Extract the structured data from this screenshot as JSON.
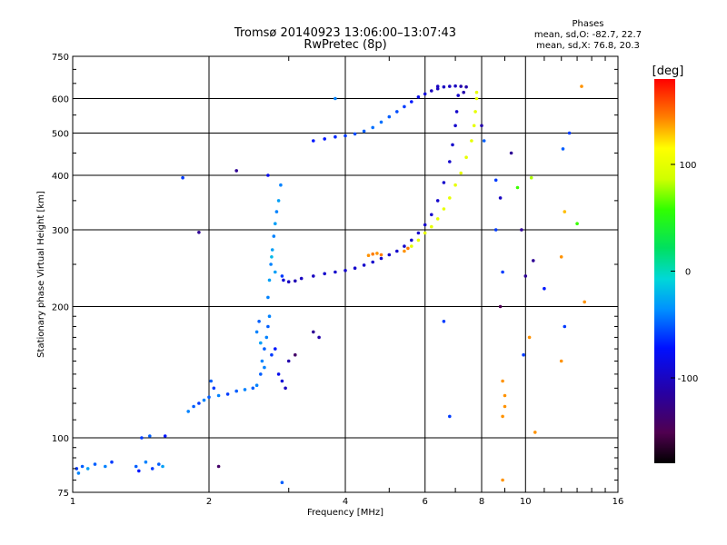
{
  "chart_data": {
    "type": "scatter",
    "title": "Tromsø 20140923 13:06:00–13:07:43",
    "subtitle": "RwPretec (8p)",
    "xlabel": "Frequency [MHz]",
    "ylabel": "Stationary phase Virtual Height [km]",
    "xscale": "log",
    "yscale": "log",
    "xlim": [
      1,
      16
    ],
    "ylim": [
      75,
      750
    ],
    "xticks": [
      1,
      2,
      4,
      6,
      8,
      10,
      16
    ],
    "yticks": [
      75,
      100,
      200,
      300,
      400,
      500,
      600,
      750
    ],
    "grid": true,
    "stats": {
      "header": "Phases",
      "line_o": "mean, sd,O: -82.7, 22.7",
      "line_x": "mean, sd,X:  76.8, 20.3"
    },
    "colorbar": {
      "label": "[deg]",
      "range": [
        -180,
        180
      ],
      "ticks": [
        100,
        0,
        -100
      ]
    },
    "series": [
      {
        "points": [
          [
            1.02,
            85,
            -60
          ],
          [
            1.03,
            83,
            -40
          ],
          [
            1.05,
            86,
            -50
          ],
          [
            1.08,
            85,
            -30
          ],
          [
            1.12,
            87,
            -50
          ],
          [
            1.18,
            86,
            -40
          ],
          [
            1.22,
            88,
            -60
          ],
          [
            1.38,
            86,
            -50
          ],
          [
            1.4,
            84,
            -70
          ],
          [
            1.45,
            88,
            -40
          ],
          [
            1.5,
            85,
            -60
          ],
          [
            1.55,
            87,
            -50
          ],
          [
            1.58,
            86,
            -30
          ],
          [
            1.42,
            100,
            -60
          ],
          [
            1.48,
            101,
            -50
          ],
          [
            1.6,
            101,
            -70
          ]
        ]
      },
      {
        "points": [
          [
            1.8,
            115,
            -40
          ],
          [
            1.85,
            118,
            -50
          ],
          [
            1.9,
            120,
            -60
          ],
          [
            1.95,
            122,
            -40
          ],
          [
            2.0,
            124,
            -50
          ],
          [
            2.1,
            125,
            -40
          ],
          [
            2.2,
            126,
            -60
          ],
          [
            2.3,
            128,
            -50
          ],
          [
            2.4,
            129,
            -40
          ],
          [
            2.5,
            130,
            -50
          ],
          [
            2.55,
            132,
            -40
          ],
          [
            2.05,
            130,
            -60
          ],
          [
            2.02,
            135,
            -50
          ]
        ]
      },
      {
        "points": [
          [
            2.6,
            140,
            -50
          ],
          [
            2.62,
            150,
            -40
          ],
          [
            2.65,
            160,
            -50
          ],
          [
            2.68,
            170,
            -40
          ],
          [
            2.7,
            180,
            -50
          ],
          [
            2.72,
            190,
            -40
          ],
          [
            2.6,
            165,
            -30
          ],
          [
            2.65,
            145,
            -40
          ],
          [
            2.75,
            155,
            -60
          ],
          [
            2.8,
            160,
            -70
          ],
          [
            2.85,
            140,
            -80
          ],
          [
            2.9,
            135,
            -90
          ],
          [
            2.95,
            130,
            -100
          ],
          [
            3.0,
            150,
            -110
          ],
          [
            2.55,
            175,
            -40
          ],
          [
            2.58,
            185,
            -50
          ]
        ]
      },
      {
        "points": [
          [
            2.7,
            210,
            -40
          ],
          [
            2.72,
            230,
            -30
          ],
          [
            2.74,
            250,
            -40
          ],
          [
            2.76,
            270,
            -30
          ],
          [
            2.78,
            290,
            -40
          ],
          [
            2.8,
            310,
            -30
          ],
          [
            2.82,
            330,
            -40
          ],
          [
            2.85,
            350,
            -30
          ],
          [
            2.88,
            380,
            -40
          ],
          [
            2.75,
            260,
            -20
          ],
          [
            2.8,
            240,
            -30
          ],
          [
            2.9,
            235,
            -60
          ]
        ]
      },
      {
        "points": [
          [
            2.92,
            230,
            -90
          ],
          [
            3.0,
            228,
            -100
          ],
          [
            3.1,
            229,
            -105
          ],
          [
            3.2,
            232,
            -100
          ],
          [
            3.4,
            235,
            -100
          ],
          [
            3.6,
            238,
            -95
          ],
          [
            3.8,
            240,
            -95
          ],
          [
            4.0,
            242,
            -95
          ],
          [
            4.2,
            245,
            -95
          ],
          [
            4.4,
            249,
            -95
          ],
          [
            4.6,
            253,
            -95
          ],
          [
            4.8,
            258,
            -95
          ],
          [
            5.0,
            263,
            -95
          ],
          [
            5.2,
            268,
            -95
          ],
          [
            5.4,
            275,
            -95
          ],
          [
            5.6,
            284,
            -95
          ],
          [
            5.8,
            295,
            -95
          ],
          [
            6.0,
            308,
            -95
          ],
          [
            6.2,
            325,
            -95
          ],
          [
            6.4,
            350,
            -95
          ],
          [
            6.6,
            385,
            -95
          ],
          [
            6.8,
            430,
            -95
          ],
          [
            6.9,
            470,
            -95
          ],
          [
            7.0,
            520,
            -95
          ],
          [
            7.05,
            560,
            -95
          ],
          [
            7.1,
            610,
            -95
          ]
        ]
      },
      {
        "points": [
          [
            4.5,
            262,
            140
          ],
          [
            4.6,
            264,
            145
          ],
          [
            4.7,
            265,
            140
          ],
          [
            4.8,
            263,
            145
          ],
          [
            5.4,
            268,
            140
          ],
          [
            5.5,
            272,
            145
          ]
        ]
      },
      {
        "points": [
          [
            5.6,
            275,
            100
          ],
          [
            5.8,
            284,
            100
          ],
          [
            6.0,
            295,
            100
          ],
          [
            6.2,
            305,
            100
          ],
          [
            6.4,
            318,
            100
          ],
          [
            6.6,
            335,
            100
          ],
          [
            6.8,
            355,
            100
          ],
          [
            7.0,
            380,
            100
          ],
          [
            7.2,
            405,
            100
          ],
          [
            7.4,
            440,
            100
          ],
          [
            7.6,
            480,
            100
          ],
          [
            7.7,
            520,
            100
          ],
          [
            7.75,
            560,
            100
          ],
          [
            7.8,
            600,
            100
          ],
          [
            7.8,
            620,
            100
          ]
        ]
      },
      {
        "points": [
          [
            3.4,
            480,
            -70
          ],
          [
            3.6,
            485,
            -70
          ],
          [
            3.8,
            490,
            -65
          ],
          [
            4.0,
            493,
            -60
          ],
          [
            4.2,
            498,
            -55
          ],
          [
            4.4,
            505,
            -50
          ],
          [
            4.6,
            515,
            -45
          ],
          [
            4.8,
            530,
            -45
          ],
          [
            5.0,
            545,
            -50
          ],
          [
            5.2,
            560,
            -55
          ],
          [
            5.4,
            575,
            -60
          ],
          [
            5.6,
            590,
            -70
          ],
          [
            5.8,
            605,
            -80
          ],
          [
            6.0,
            615,
            -90
          ],
          [
            6.2,
            625,
            -100
          ],
          [
            6.4,
            632,
            -100
          ],
          [
            6.6,
            638,
            -100
          ],
          [
            6.8,
            640,
            -100
          ],
          [
            7.0,
            641,
            -100
          ],
          [
            7.2,
            640,
            -110
          ],
          [
            7.4,
            638,
            -110
          ]
        ]
      },
      {
        "points": [
          [
            1.75,
            395,
            -60
          ],
          [
            1.9,
            296,
            -120
          ],
          [
            2.3,
            410,
            -120
          ],
          [
            2.7,
            400,
            -80
          ],
          [
            3.8,
            600,
            -40
          ],
          [
            6.4,
            640,
            -100
          ],
          [
            7.3,
            620,
            -110
          ],
          [
            8.0,
            520,
            -110
          ],
          [
            8.1,
            480,
            -50
          ],
          [
            8.6,
            390,
            -60
          ],
          [
            8.6,
            300,
            -60
          ],
          [
            8.8,
            355,
            -100
          ],
          [
            9.3,
            450,
            -120
          ],
          [
            9.6,
            375,
            60
          ],
          [
            9.8,
            300,
            -120
          ],
          [
            10.4,
            255,
            -120
          ],
          [
            10.3,
            395,
            80
          ],
          [
            8.9,
            240,
            -60
          ],
          [
            10.0,
            235,
            -120
          ],
          [
            11.0,
            220,
            -70
          ],
          [
            12.1,
            460,
            -50
          ],
          [
            12.5,
            500,
            -60
          ],
          [
            13.3,
            640,
            140
          ],
          [
            13.0,
            310,
            60
          ],
          [
            8.8,
            200,
            -150
          ],
          [
            12.2,
            180,
            -60
          ],
          [
            12.0,
            260,
            140
          ],
          [
            12.2,
            330,
            130
          ],
          [
            13.5,
            205,
            140
          ],
          [
            10.2,
            170,
            140
          ],
          [
            9.9,
            155,
            -60
          ],
          [
            12.0,
            150,
            140
          ],
          [
            8.9,
            135,
            140
          ],
          [
            9.0,
            125,
            140
          ],
          [
            9.0,
            118,
            140
          ],
          [
            8.9,
            112,
            140
          ],
          [
            10.5,
            103,
            140
          ],
          [
            8.9,
            80,
            140
          ],
          [
            6.8,
            112,
            -60
          ],
          [
            6.6,
            185,
            -60
          ],
          [
            2.9,
            79,
            -50
          ],
          [
            2.1,
            86,
            -140
          ],
          [
            3.1,
            155,
            -140
          ],
          [
            3.4,
            175,
            -120
          ],
          [
            3.5,
            170,
            -110
          ]
        ]
      }
    ]
  }
}
